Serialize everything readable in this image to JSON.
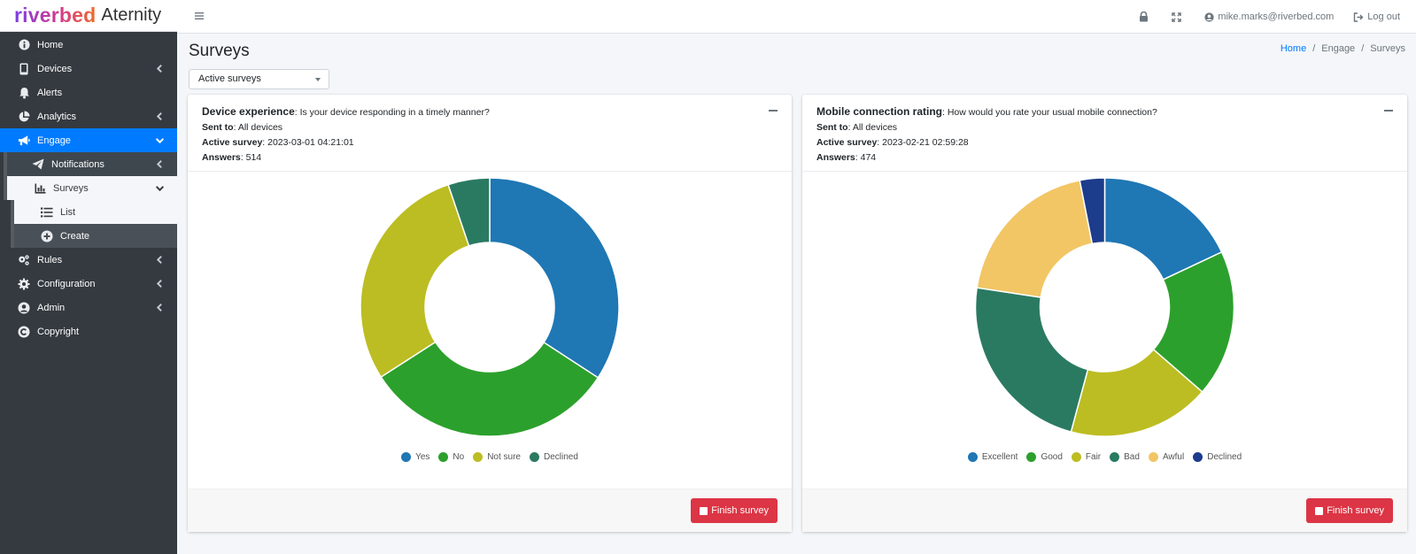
{
  "brand": {
    "part1": "riverbed",
    "part2": "Aternity"
  },
  "sidebar": {
    "items": [
      {
        "label": "Home",
        "icon": "info-circle-icon"
      },
      {
        "label": "Devices",
        "icon": "mobile-icon"
      },
      {
        "label": "Alerts",
        "icon": "bell-icon"
      },
      {
        "label": "Analytics",
        "icon": "pie-chart-icon"
      },
      {
        "label": "Engage",
        "icon": "megaphone-icon"
      },
      {
        "label": "Notifications",
        "icon": "paper-plane-icon"
      },
      {
        "label": "Surveys",
        "icon": "bar-chart-icon"
      },
      {
        "label": "List",
        "icon": "list-icon"
      },
      {
        "label": "Create",
        "icon": "plus-circle-icon"
      },
      {
        "label": "Rules",
        "icon": "gears-icon"
      },
      {
        "label": "Configuration",
        "icon": "gear-icon"
      },
      {
        "label": "Admin",
        "icon": "user-circle-icon"
      },
      {
        "label": "Copyright",
        "icon": "copyright-icon"
      }
    ]
  },
  "topbar": {
    "user": "mike.marks@riverbed.com",
    "logout": "Log out"
  },
  "page": {
    "title": "Surveys",
    "breadcrumb": [
      "Home",
      "Engage",
      "Surveys"
    ],
    "filter_value": "Active surveys"
  },
  "labels": {
    "sent_to": "Sent to",
    "active_survey": "Active survey",
    "answers": "Answers",
    "finish": "Finish survey"
  },
  "surveys": [
    {
      "title": "Device experience",
      "question": ": Is your device responding in a timely manner?",
      "sent_to": ": All devices",
      "active_survey": ": 2023-03-01 04:21:01",
      "answers": ": 514"
    },
    {
      "title": "Mobile connection rating",
      "question": ": How would you rate your usual mobile connection?",
      "sent_to": ": All devices",
      "active_survey": ": 2023-02-21 02:59:28",
      "answers": ": 474"
    }
  ],
  "chart_data": [
    {
      "type": "pie",
      "categories": [
        "Yes",
        "No",
        "Not sure",
        "Declined"
      ],
      "values": [
        34.2,
        31.7,
        28.9,
        5.2
      ],
      "colors": [
        "#1f77b4",
        "#2ca02c",
        "#bcbd22",
        "#2a7a62"
      ]
    },
    {
      "type": "pie",
      "categories": [
        "Excellent",
        "Good",
        "Fair",
        "Bad",
        "Awful",
        "Declined"
      ],
      "values": [
        18.0,
        18.4,
        17.8,
        23.2,
        19.5,
        3.1
      ],
      "colors": [
        "#1f77b4",
        "#2ca02c",
        "#bcbd22",
        "#2a7a62",
        "#f2c665",
        "#1c3c8c"
      ]
    }
  ]
}
